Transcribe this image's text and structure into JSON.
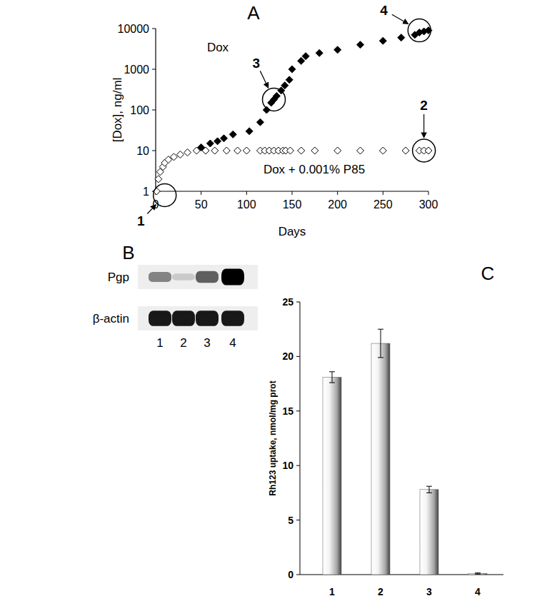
{
  "chart_data": [
    {
      "type": "scatter",
      "title": "A",
      "x_label": "Days",
      "y_label": "[Dox], ng/ml",
      "log": "y",
      "xlim": [
        0,
        300
      ],
      "ylim": [
        1,
        10000
      ],
      "xticks": [
        0,
        50,
        100,
        150,
        200,
        250,
        300
      ],
      "yticks": [
        1,
        10,
        100,
        1000,
        10000
      ],
      "series": [
        {
          "name": "Dox",
          "color": "#000000",
          "marker": "diamond",
          "x": [
            50,
            60,
            68,
            75,
            85,
            103,
            115,
            122,
            127,
            130,
            133,
            138,
            142,
            147,
            150,
            160,
            165,
            180,
            200,
            225,
            250,
            270,
            285,
            290,
            295,
            300
          ],
          "values": [
            12,
            15,
            17,
            20,
            25,
            30,
            50,
            100,
            150,
            180,
            220,
            300,
            400,
            550,
            1000,
            1600,
            2100,
            2500,
            3000,
            4000,
            5000,
            6000,
            7000,
            8000,
            8500,
            9000
          ]
        },
        {
          "name": "Dox + 0.001% P85",
          "color": "#000000",
          "marker": "open-diamond",
          "x": [
            1,
            3,
            5,
            8,
            10,
            14,
            20,
            27,
            35,
            45,
            55,
            65,
            78,
            90,
            100,
            115,
            120,
            125,
            130,
            135,
            140,
            143,
            148,
            160,
            175,
            200,
            225,
            250,
            275,
            290,
            295,
            300
          ],
          "values": [
            1,
            2,
            3,
            4,
            5,
            6,
            7,
            8,
            9,
            10,
            10,
            10,
            10,
            10,
            10,
            10,
            10,
            10,
            10,
            10,
            10,
            10,
            10,
            10,
            10,
            10,
            10,
            10,
            10,
            10,
            10,
            10
          ]
        }
      ],
      "annotations": [
        {
          "text": "1",
          "x": 10,
          "y": 0.8
        },
        {
          "text": "2",
          "x": 295,
          "y": 10
        },
        {
          "text": "3",
          "x": 130,
          "y": 180
        },
        {
          "text": "4",
          "x": 290,
          "y": 9000
        }
      ]
    },
    {
      "type": "bar",
      "title": "C",
      "y_label": "Rh123 uptake, nmol/mg prot",
      "categories": [
        "1",
        "2",
        "3",
        "4"
      ],
      "values": [
        18.1,
        21.2,
        7.8,
        0.1
      ],
      "errors": [
        0.5,
        1.3,
        0.3,
        0.05
      ],
      "color": "#a8a8a8",
      "ylim": [
        0,
        25
      ],
      "yticks": [
        0,
        5,
        10,
        15,
        20,
        25
      ]
    }
  ],
  "blot": {
    "title": "B",
    "lanes": [
      "1",
      "2",
      "3",
      "4"
    ],
    "rows": [
      {
        "label": "Pgp",
        "intensity": [
          0.45,
          0.15,
          0.6,
          1.0
        ]
      },
      {
        "label": "β-actin",
        "intensity": [
          0.9,
          0.9,
          0.9,
          0.9
        ]
      }
    ]
  }
}
